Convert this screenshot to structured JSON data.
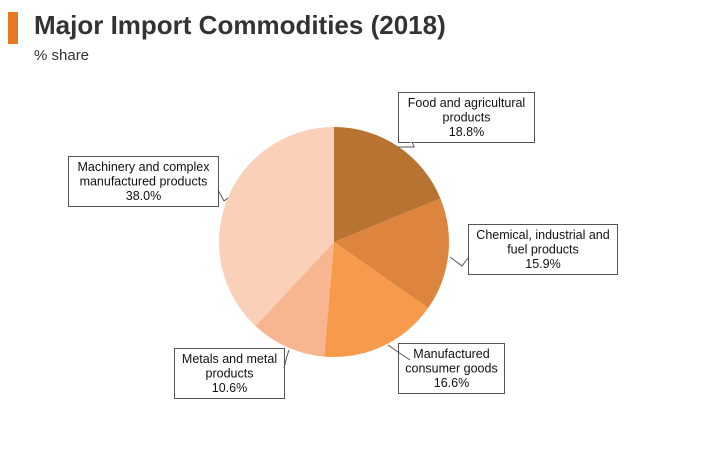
{
  "header": {
    "title": "Major Import Commodities (2018)",
    "subtitle": "% share",
    "accent_color": "#e87722"
  },
  "chart_data": {
    "type": "pie",
    "title": "Major Import Commodities (2018)",
    "subtitle": "% share",
    "start_angle_deg": 0,
    "direction": "clockwise",
    "slices": [
      {
        "lines": [
          "Food and agricultural",
          "products"
        ],
        "value": 18.8,
        "value_label": "18.8%",
        "color": "#b87333"
      },
      {
        "lines": [
          "Chemical, industrial and",
          "fuel products"
        ],
        "value": 15.9,
        "value_label": "15.9%",
        "color": "#dd843e"
      },
      {
        "lines": [
          "Manufactured",
          "consumer goods"
        ],
        "value": 16.6,
        "value_label": "16.6%",
        "color": "#f79a4b"
      },
      {
        "lines": [
          "Metals and metal",
          "products"
        ],
        "value": 10.6,
        "value_label": "10.6%",
        "color": "#f7b590"
      },
      {
        "lines": [
          "Machinery and complex",
          "manufactured products"
        ],
        "value": 38.0,
        "value_label": "38.0%",
        "color": "#fbd0b8"
      }
    ]
  }
}
